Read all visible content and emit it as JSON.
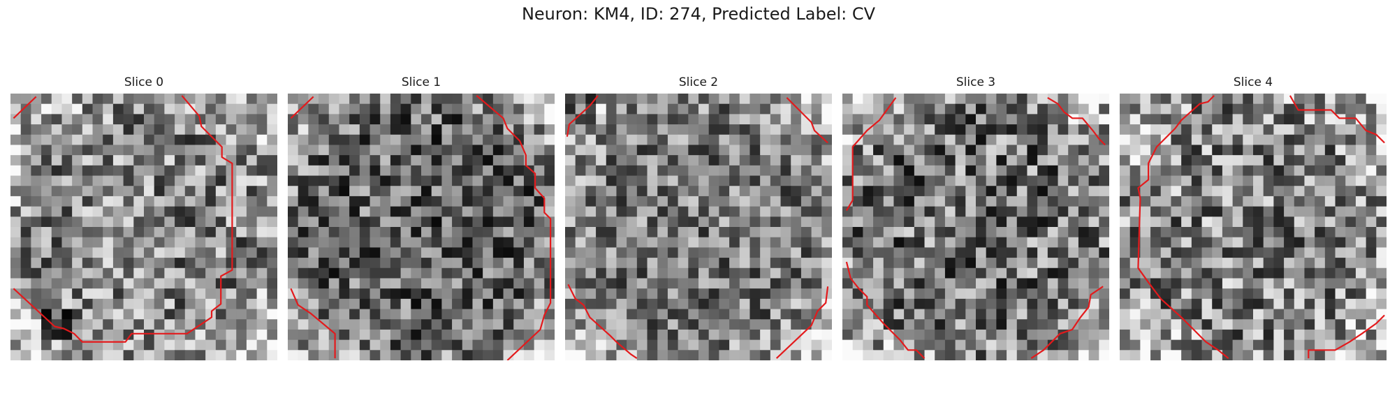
{
  "figure": {
    "title": "Neuron: KM4, ID: 274, Predicted Label: CV"
  },
  "slices": [
    {
      "label": "Slice 0"
    },
    {
      "label": "Slice 1"
    },
    {
      "label": "Slice 2"
    },
    {
      "label": "Slice 3"
    },
    {
      "label": "Slice 4"
    }
  ],
  "colors": {
    "contour": "#e31a1c",
    "background": "#ffffff"
  }
}
